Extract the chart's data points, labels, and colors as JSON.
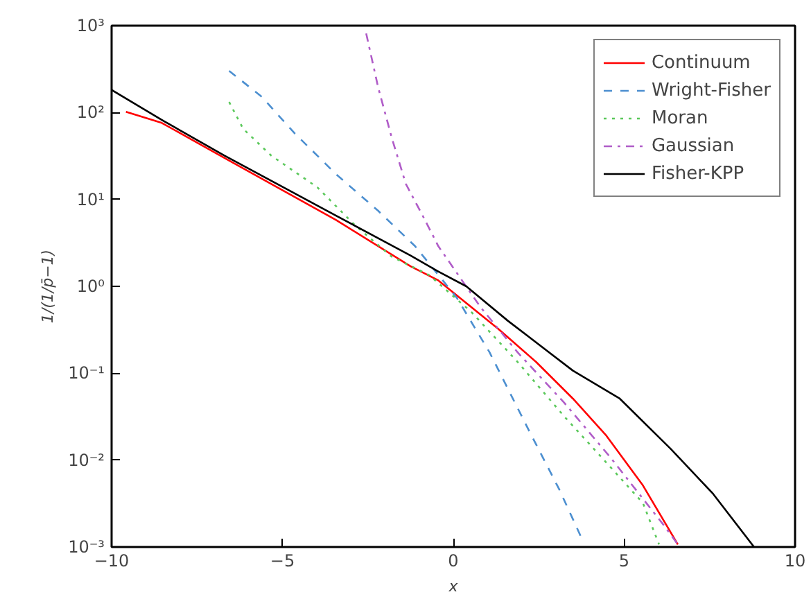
{
  "chart_data": {
    "type": "line",
    "xlabel": "x",
    "ylabel": "1/(1/p̄−1)",
    "log": "y",
    "grid": false,
    "legend": "top right",
    "xlim": [
      -10,
      10
    ],
    "ylim": [
      0.001,
      1000
    ],
    "xticks": [
      {
        "value": -10,
        "label": "−10"
      },
      {
        "value": -5,
        "label": "−5"
      },
      0,
      5,
      10
    ],
    "yticks": [
      {
        "value": 0.001,
        "label": "10⁻³"
      },
      {
        "value": 0.01,
        "label": "10⁻²"
      },
      {
        "value": 0.1,
        "label": "10⁻¹"
      },
      {
        "value": 1,
        "label": "10⁰"
      },
      {
        "value": 10,
        "label": "10¹"
      },
      {
        "value": 100,
        "label": "10²"
      },
      {
        "value": 1000,
        "label": "10³"
      }
    ],
    "series": [
      {
        "name": "Continuum",
        "color": "#ff0000",
        "line_style": "solid",
        "x": [
          -9.58,
          -8.53,
          -6.56,
          -3.43,
          -1.25,
          -0.44,
          1.33,
          2.42,
          3.5,
          4.46,
          5.55,
          6.57
        ],
        "values": [
          102,
          76,
          28,
          5.8,
          1.7,
          1.17,
          0.32,
          0.135,
          0.051,
          0.0195,
          0.0051,
          0.00107
        ]
      },
      {
        "name": "Wright-Fisher",
        "color": "#4c8fd0",
        "line_style": "dashed",
        "x": [
          -6.56,
          -5.6,
          -4.65,
          -3.43,
          -2.2,
          -1.12,
          0.1,
          1.06,
          2.15,
          3.1,
          3.78
        ],
        "values": [
          302,
          151,
          58,
          19.5,
          7.4,
          2.9,
          0.74,
          0.174,
          0.0245,
          0.0046,
          0.0012
        ]
      },
      {
        "name": "Moran",
        "color": "#5ac85a",
        "line_style": "dotted",
        "x": [
          -6.56,
          -6.15,
          -5.33,
          -3.98,
          -2.89,
          -1.8,
          -0.71,
          0.52,
          1.88,
          3.24,
          4.6,
          5.55,
          6.02
        ],
        "values": [
          132,
          65,
          32,
          13.8,
          5.1,
          2.19,
          1.35,
          0.51,
          0.135,
          0.032,
          0.0083,
          0.0032,
          0.00107
        ]
      },
      {
        "name": "Gaussian",
        "color": "#b05cc8",
        "line_style": "dashdot",
        "x": [
          -2.55,
          -2.2,
          -1.8,
          -1.39,
          -0.85,
          -0.44,
          0.79,
          1.88,
          3.24,
          4.6,
          6.16,
          6.57
        ],
        "values": [
          813,
          195,
          51,
          15.1,
          6.0,
          2.9,
          0.58,
          0.174,
          0.046,
          0.0107,
          0.00178,
          0.00107
        ]
      },
      {
        "name": "Fisher-KPP",
        "color": "#000000",
        "line_style": "solid",
        "x": [
          -10,
          -8.5,
          -6.7,
          -3.43,
          -1.25,
          -0.44,
          0.38,
          1.6,
          3.5,
          4.87,
          6.36,
          7.6,
          8.8
        ],
        "values": [
          182,
          81,
          32,
          6.5,
          2.26,
          1.48,
          1.0,
          0.4,
          0.107,
          0.051,
          0.0135,
          0.0041,
          0.001
        ]
      }
    ]
  }
}
